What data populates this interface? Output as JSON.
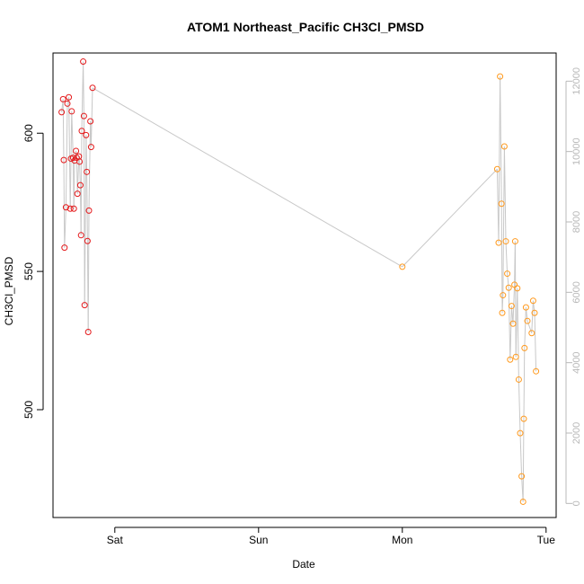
{
  "chart_data": {
    "type": "scatter",
    "title": "ATOM1 Northeast_Pacific CH3Cl_PMSD",
    "xlabel": "Date",
    "ylabel": "CH3Cl_PMSD",
    "x_ticks": [
      "Sat",
      "Sun",
      "Mon",
      "Tue"
    ],
    "x_tick_days": [
      0,
      1,
      2,
      3
    ],
    "xlim_days": [
      -0.43,
      3.07
    ],
    "y_ticks": [
      500,
      550,
      600
    ],
    "ylim": [
      461,
      629
    ],
    "y2_ticks": [
      0,
      2000,
      4000,
      6000,
      8000,
      10000,
      12000
    ],
    "y2lim": [
      -400,
      12800
    ],
    "colors": {
      "series1": "#e41a1c",
      "series2": "#ff9a1f",
      "line": "#c8c8c8",
      "axis": "#000000",
      "axis2": "#b8b8b8"
    },
    "series": [
      {
        "color": "#e41a1c",
        "points": [
          [
            -0.37,
            607.6
          ],
          [
            -0.36,
            612.3
          ],
          [
            -0.355,
            590.3
          ],
          [
            -0.35,
            558.6
          ],
          [
            -0.34,
            573.2
          ],
          [
            -0.33,
            610.7
          ],
          [
            -0.32,
            613.0
          ],
          [
            -0.31,
            572.7
          ],
          [
            -0.305,
            590.8
          ],
          [
            -0.3,
            607.9
          ],
          [
            -0.29,
            591.1
          ],
          [
            -0.285,
            572.7
          ],
          [
            -0.28,
            590.1
          ],
          [
            -0.27,
            593.6
          ],
          [
            -0.265,
            591.1
          ],
          [
            -0.26,
            578.1
          ],
          [
            -0.25,
            591.6
          ],
          [
            -0.245,
            589.7
          ],
          [
            -0.24,
            581.2
          ],
          [
            -0.235,
            563.1
          ],
          [
            -0.23,
            600.8
          ],
          [
            -0.22,
            625.9
          ],
          [
            -0.215,
            606.2
          ],
          [
            -0.21,
            537.8
          ],
          [
            -0.2,
            599.3
          ],
          [
            -0.195,
            586.0
          ],
          [
            -0.19,
            561.0
          ],
          [
            -0.185,
            528.1
          ],
          [
            -0.18,
            572.0
          ],
          [
            -0.17,
            604.3
          ],
          [
            -0.165,
            595.0
          ],
          [
            -0.155,
            616.4
          ]
        ]
      },
      {
        "color": "#ff9a1f",
        "points": [
          [
            2.0,
            551.7
          ],
          [
            2.66,
            587.0
          ],
          [
            2.67,
            560.4
          ],
          [
            2.68,
            620.5
          ],
          [
            2.69,
            574.5
          ],
          [
            2.695,
            535.0
          ],
          [
            2.7,
            541.4
          ],
          [
            2.71,
            595.2
          ],
          [
            2.72,
            560.9
          ],
          [
            2.73,
            549.2
          ],
          [
            2.74,
            544.1
          ],
          [
            2.75,
            518.1
          ],
          [
            2.76,
            537.5
          ],
          [
            2.77,
            531.1
          ],
          [
            2.78,
            545.2
          ],
          [
            2.785,
            560.9
          ],
          [
            2.79,
            519.1
          ],
          [
            2.8,
            543.9
          ],
          [
            2.81,
            510.9
          ],
          [
            2.82,
            491.5
          ],
          [
            2.83,
            475.9
          ],
          [
            2.84,
            466.7
          ],
          [
            2.845,
            496.7
          ],
          [
            2.85,
            522.3
          ],
          [
            2.86,
            537.0
          ],
          [
            2.87,
            532.1
          ],
          [
            2.9,
            527.7
          ],
          [
            2.91,
            539.4
          ],
          [
            2.92,
            535.0
          ],
          [
            2.93,
            513.9
          ]
        ]
      }
    ]
  }
}
